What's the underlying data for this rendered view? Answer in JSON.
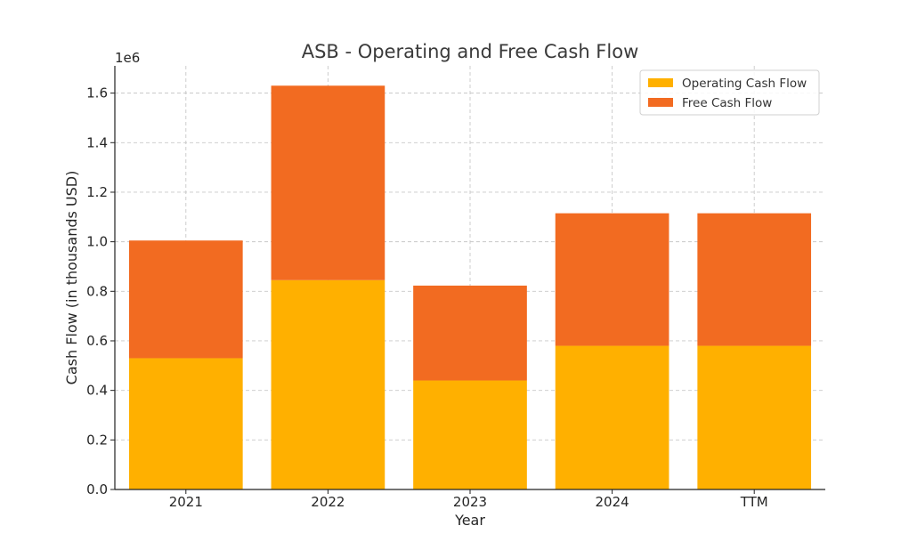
{
  "chart_data": {
    "type": "bar",
    "stacked": true,
    "title": "ASB - Operating and Free Cash Flow",
    "xlabel": "Year",
    "ylabel": "Cash Flow (in thousands USD)",
    "y_offset_label": "1e6",
    "categories": [
      "2021",
      "2022",
      "2023",
      "2024",
      "TTM"
    ],
    "series": [
      {
        "name": "Operating Cash Flow",
        "color": "#FFB000",
        "values": [
          530000,
          845000,
          440000,
          580000,
          580000
        ]
      },
      {
        "name": "Free Cash Flow",
        "color": "#F26B21",
        "values": [
          475000,
          785000,
          383000,
          535000,
          535000
        ]
      }
    ],
    "ylim": [
      0,
      1710000
    ],
    "yticks": [
      0,
      200000,
      400000,
      600000,
      800000,
      1000000,
      1200000,
      1400000,
      1600000
    ],
    "ytick_labels": [
      "0.0",
      "0.2",
      "0.4",
      "0.6",
      "0.8",
      "1.0",
      "1.2",
      "1.4",
      "1.6"
    ],
    "grid": true,
    "legend_position": "top-right"
  }
}
